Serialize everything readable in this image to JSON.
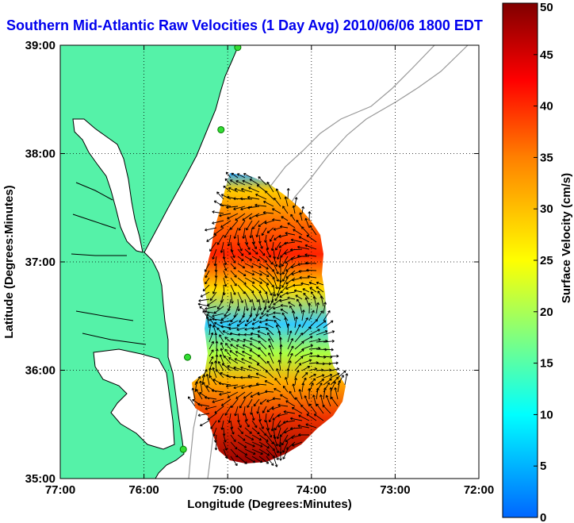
{
  "title": "Southern Mid-Atlantic Raw Velocities (1 Day Avg) 2010/06/06 1800 EDT",
  "map": {
    "xlabel": "Longitude (Degrees:Minutes)",
    "ylabel": "Latitude (Degrees:Minutes)",
    "lon_range": [
      -77,
      -72
    ],
    "lat_range": [
      35,
      39
    ],
    "x_ticks": [
      {
        "value": -77,
        "label": "77:00"
      },
      {
        "value": -76,
        "label": "76:00"
      },
      {
        "value": -75,
        "label": "75:00"
      },
      {
        "value": -74,
        "label": "74:00"
      },
      {
        "value": -73,
        "label": "73:00"
      },
      {
        "value": -72,
        "label": "72:00"
      }
    ],
    "y_ticks": [
      {
        "value": 35,
        "label": "35:00"
      },
      {
        "value": 36,
        "label": "36:00"
      },
      {
        "value": 37,
        "label": "37:00"
      },
      {
        "value": 38,
        "label": "38:00"
      },
      {
        "value": 39,
        "label": "39:00"
      }
    ],
    "grid": true,
    "land_color": "#55f2a8",
    "sites": [
      {
        "lon": -74.88,
        "lat": 38.98
      },
      {
        "lon": -75.08,
        "lat": 38.22
      },
      {
        "lon": -75.48,
        "lat": 36.12
      },
      {
        "lon": -75.53,
        "lat": 35.27
      }
    ]
  },
  "colorbar": {
    "label": "Surface Velocity (cm/s)",
    "min": 0,
    "max": 50,
    "ticks": [
      {
        "value": 0,
        "label": "0"
      },
      {
        "value": 5,
        "label": "5"
      },
      {
        "value": 10,
        "label": "10"
      },
      {
        "value": 15,
        "label": "15"
      },
      {
        "value": 20,
        "label": "20"
      },
      {
        "value": 25,
        "label": "25"
      },
      {
        "value": 30,
        "label": "30"
      },
      {
        "value": 35,
        "label": "35"
      },
      {
        "value": 40,
        "label": "40"
      },
      {
        "value": 45,
        "label": "45"
      },
      {
        "value": 50,
        "label": "50"
      }
    ],
    "colors": [
      "#0066ff",
      "#00ffff",
      "#ffff00",
      "#ff8000",
      "#ff0000",
      "#800000"
    ]
  }
}
